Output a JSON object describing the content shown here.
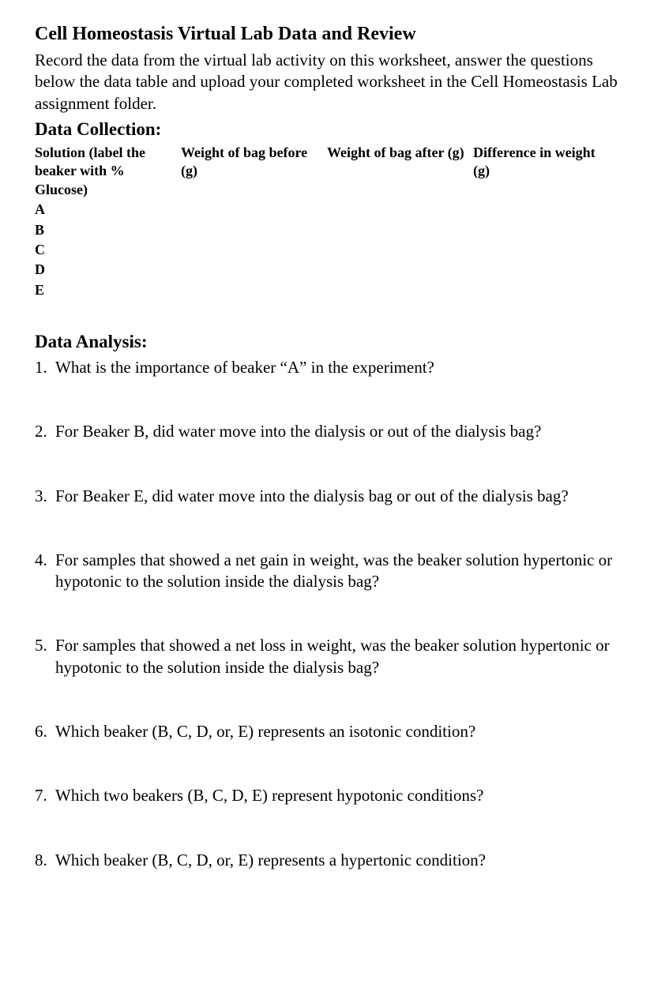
{
  "title": "Cell Homeostasis Virtual Lab Data and Review",
  "intro": "Record the data from the virtual lab activity on this worksheet, answer the questions below the data table and upload your completed worksheet in the Cell Homeostasis Lab assignment folder.",
  "data_collection_heading": "Data Collection:",
  "table": {
    "headers": [
      "Solution (label the beaker with % Glucose)",
      "Weight of bag before (g)",
      "Weight of bag after (g)",
      "Difference in weight (g)"
    ],
    "rows": [
      {
        "label": "A",
        "before": "",
        "after": "",
        "diff": ""
      },
      {
        "label": "B",
        "before": "",
        "after": "",
        "diff": ""
      },
      {
        "label": "C",
        "before": "",
        "after": "",
        "diff": ""
      },
      {
        "label": "D",
        "before": "",
        "after": "",
        "diff": ""
      },
      {
        "label": "E",
        "before": "",
        "after": "",
        "diff": ""
      }
    ]
  },
  "data_analysis_heading": "Data Analysis:",
  "questions": [
    {
      "num": "1.",
      "text": "What is the importance of beaker “A” in the experiment?"
    },
    {
      "num": "2.",
      "text": "For Beaker B, did water move into the dialysis or out of the dialysis bag?"
    },
    {
      "num": "3.",
      "text": "For Beaker E, did water move into the dialysis bag or out of the dialysis bag?"
    },
    {
      "num": "4.",
      "text": "For samples that showed a net gain in weight, was the beaker solution hypertonic or hypotonic to the solution inside the dialysis bag?"
    },
    {
      "num": "5.",
      "text": "For samples that showed a net loss in weight, was the beaker solution hypertonic or hypotonic to the solution inside the dialysis bag?"
    },
    {
      "num": "6.",
      "text": "Which beaker (B, C, D, or, E) represents an isotonic condition?"
    },
    {
      "num": "7.",
      "text": "Which two beakers (B, C, D, E) represent hypotonic conditions?"
    },
    {
      "num": "8.",
      "text": "Which beaker (B, C, D, or, E) represents a hypertonic condition?"
    }
  ]
}
